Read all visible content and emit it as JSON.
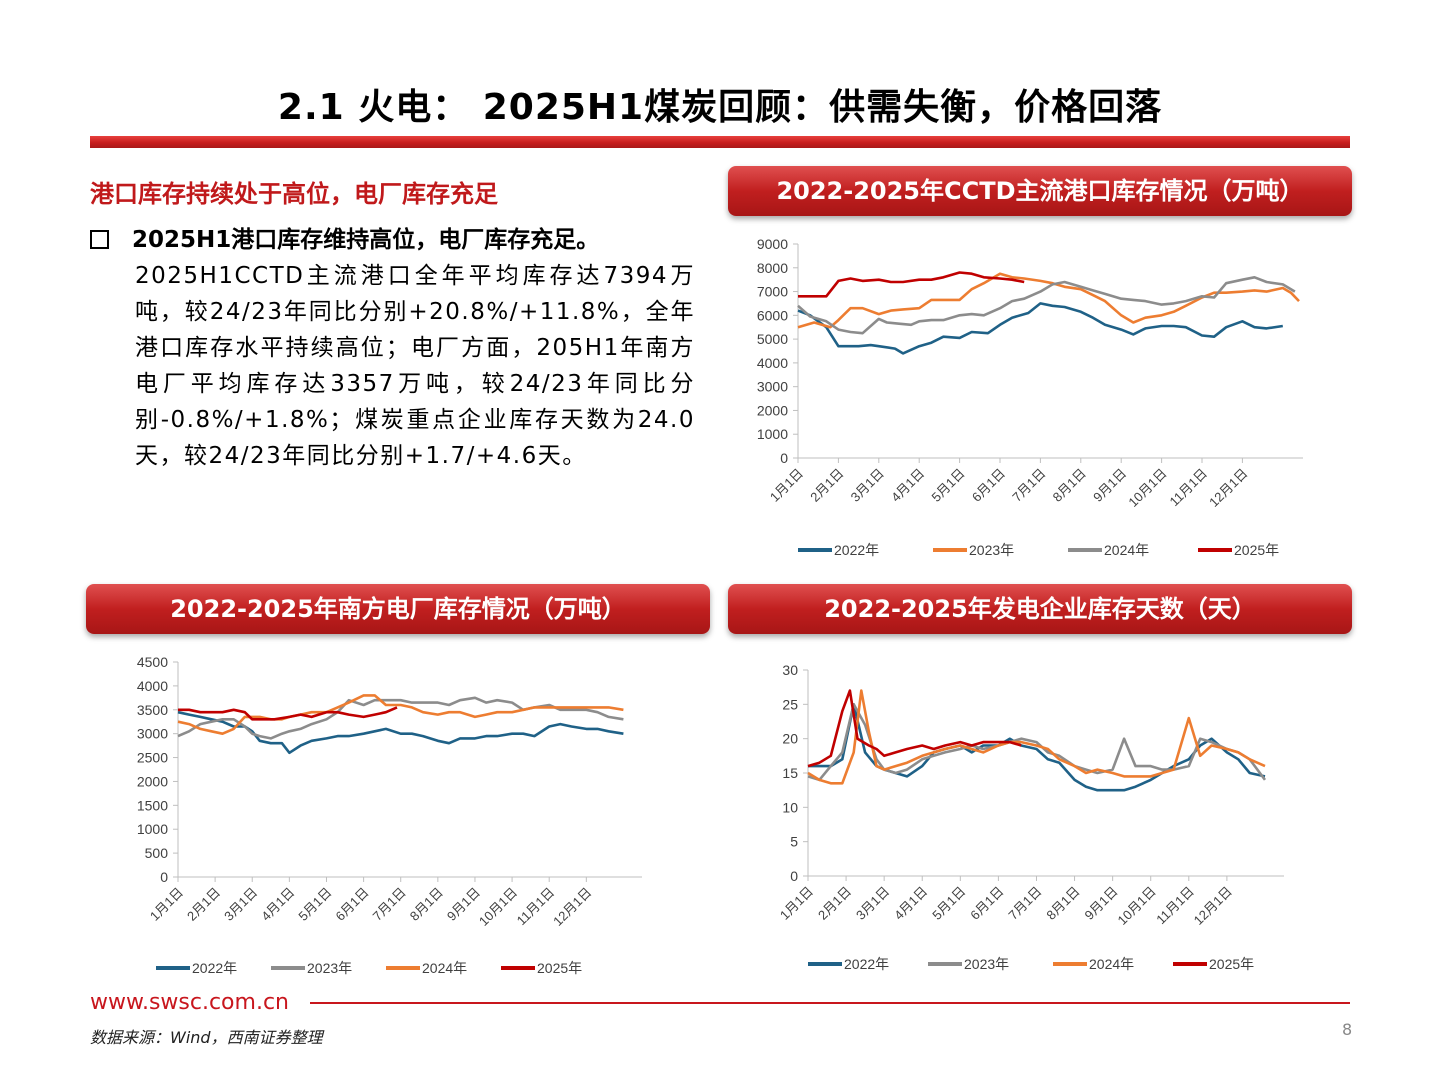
{
  "slide": {
    "title": "2.1 火电： 2025H1煤炭回顾：供需失衡，价格回落",
    "section_heading": "港口库存持续处于高位，电厂库存充足",
    "bullet_lead": "2025H1港口库存维持高位，电厂库存充足。",
    "bullet_body": "2025H1CCTD主流港口全年平均库存达7394万吨，较24/23年同比分别+20.8%/+11.8%，全年港口库存水平持续高位；电厂方面，205H1年南方电厂平均库存达3357万吨，较24/23年同比分别-0.8%/+1.8%；煤炭重点企业库存天数为24.0天，较24/23年同比分别+1.7/+4.6天。",
    "footer_url": "www.swsc.com.cn",
    "source": "数据来源：Wind，西南证券整理",
    "page_number": "8"
  },
  "colors": {
    "brand_red": "#c8161d",
    "y2022": "#1f6187",
    "y2023": "#ed7d31",
    "y2024": "#8c8c8c",
    "y2025": "#c00000"
  },
  "months": [
    "1月1日",
    "2月1日",
    "3月1日",
    "4月1日",
    "5月1日",
    "6月1日",
    "7月1日",
    "8月1日",
    "9月1日",
    "10月1日",
    "11月1日",
    "12月1日"
  ],
  "chart_data": [
    {
      "id": "port",
      "type": "line",
      "title": "2022-2025年CCTD主流港口库存情况（万吨）",
      "ylim": [
        0,
        9000
      ],
      "yticks": [
        "0",
        "1000",
        "2000",
        "3000",
        "4000",
        "5000",
        "6000",
        "7000",
        "8000",
        "9000"
      ],
      "series": [
        {
          "name": "2022年",
          "color": "#1f6187",
          "x": [
            0,
            0.3,
            0.7,
            1,
            1.2,
            1.5,
            1.8,
            2,
            2.4,
            2.6,
            3,
            3.3,
            3.6,
            4,
            4.3,
            4.7,
            5,
            5.3,
            5.7,
            6,
            6.3,
            6.6,
            7,
            7.3,
            7.6,
            8,
            8.3,
            8.6,
            9,
            9.3,
            9.6,
            10,
            10.3,
            10.6,
            11,
            11.3,
            11.6,
            12,
            12.2,
            12.5
          ],
          "y": [
            6200,
            6000,
            5500,
            4700,
            4700,
            4700,
            4750,
            4700,
            4600,
            4400,
            4700,
            4850,
            5100,
            5050,
            5300,
            5250,
            5600,
            5900,
            6100,
            6500,
            6400,
            6350,
            6150,
            5900,
            5600,
            5400,
            5200,
            5450,
            5550,
            5550,
            5500,
            5150,
            5100,
            5500,
            5750,
            5500,
            5450,
            5550,
            null,
            null
          ]
        },
        {
          "name": "2023年",
          "color": "#ed7d31",
          "x": [
            0,
            0.4,
            0.8,
            1,
            1.3,
            1.6,
            2,
            2.3,
            2.6,
            3,
            3.3,
            3.6,
            4,
            4.3,
            4.6,
            5,
            5.3,
            5.6,
            6,
            6.3,
            6.6,
            7,
            7.3,
            7.6,
            8,
            8.3,
            8.6,
            9,
            9.3,
            9.6,
            10,
            10.3,
            10.6,
            11,
            11.3,
            11.6,
            12,
            12.2,
            12.4
          ],
          "y": [
            5500,
            5700,
            5500,
            5800,
            6300,
            6300,
            6050,
            6200,
            6250,
            6300,
            6650,
            6650,
            6650,
            7100,
            7350,
            7750,
            7600,
            7550,
            7450,
            7350,
            7200,
            7100,
            6850,
            6600,
            6000,
            5700,
            5900,
            6000,
            6150,
            6400,
            6750,
            6950,
            6950,
            7000,
            7050,
            7000,
            7150,
            6950,
            6600
          ]
        },
        {
          "name": "2024年",
          "color": "#8c8c8c",
          "x": [
            0,
            0.3,
            0.7,
            1,
            1.3,
            1.6,
            2,
            2.2,
            2.5,
            2.8,
            3,
            3.3,
            3.6,
            4,
            4.3,
            4.6,
            5,
            5.3,
            5.6,
            6,
            6.3,
            6.6,
            7,
            7.3,
            7.6,
            8,
            8.3,
            8.6,
            9,
            9.3,
            9.6,
            10,
            10.3,
            10.6,
            11,
            11.3,
            11.6,
            12,
            12.3
          ],
          "y": [
            6400,
            5950,
            5750,
            5400,
            5300,
            5250,
            5850,
            5700,
            5650,
            5600,
            5750,
            5800,
            5800,
            6000,
            6050,
            6000,
            6300,
            6600,
            6700,
            7000,
            7300,
            7400,
            7200,
            7050,
            6900,
            6700,
            6650,
            6600,
            6450,
            6500,
            6600,
            6800,
            6750,
            7350,
            7500,
            7600,
            7400,
            7300,
            7000
          ]
        },
        {
          "name": "2025年",
          "color": "#c00000",
          "x": [
            0,
            0.3,
            0.7,
            1,
            1.3,
            1.6,
            2,
            2.3,
            2.6,
            3,
            3.3,
            3.6,
            4,
            4.3,
            4.6,
            5,
            5.3,
            5.6
          ],
          "y": [
            6800,
            6800,
            6800,
            7450,
            7550,
            7450,
            7500,
            7400,
            7400,
            7500,
            7500,
            7600,
            7800,
            7750,
            7600,
            7550,
            7500,
            7400
          ]
        }
      ]
    },
    {
      "id": "plant",
      "type": "line",
      "title": "2022-2025年南方电厂库存情况（万吨）",
      "ylim": [
        0,
        4500
      ],
      "yticks": [
        "0",
        "500",
        "1000",
        "1500",
        "2000",
        "2500",
        "3000",
        "3500",
        "4000",
        "4500"
      ],
      "series": [
        {
          "name": "2022年",
          "color": "#1f6187",
          "x": [
            0,
            0.3,
            0.6,
            0.9,
            1.2,
            1.5,
            1.8,
            2,
            2.2,
            2.5,
            2.8,
            3,
            3.3,
            3.6,
            4,
            4.3,
            4.6,
            5,
            5.3,
            5.6,
            6,
            6.3,
            6.6,
            7,
            7.3,
            7.6,
            8,
            8.3,
            8.6,
            9,
            9.3,
            9.6,
            10,
            10.3,
            10.6,
            11,
            11.3,
            11.6,
            12
          ],
          "y": [
            3450,
            3400,
            3350,
            3300,
            3250,
            3150,
            3150,
            3050,
            2850,
            2800,
            2800,
            2600,
            2750,
            2850,
            2900,
            2950,
            2950,
            3000,
            3050,
            3100,
            3000,
            3000,
            2950,
            2850,
            2800,
            2900,
            2900,
            2950,
            2950,
            3000,
            3000,
            2950,
            3150,
            3200,
            3150,
            3100,
            3100,
            3050,
            3000
          ]
        },
        {
          "name": "2023年",
          "color": "#8c8c8c",
          "x": [
            0,
            0.3,
            0.6,
            0.9,
            1.2,
            1.5,
            1.8,
            2,
            2.2,
            2.5,
            2.8,
            3,
            3.3,
            3.6,
            4,
            4.3,
            4.6,
            5,
            5.3,
            5.6,
            6,
            6.3,
            6.6,
            7,
            7.3,
            7.6,
            8,
            8.3,
            8.6,
            9,
            9.3,
            9.6,
            10,
            10.3,
            10.6,
            11,
            11.3,
            11.6,
            12
          ],
          "y": [
            2950,
            3050,
            3200,
            3250,
            3300,
            3300,
            3150,
            3000,
            2950,
            2900,
            3000,
            3050,
            3100,
            3200,
            3300,
            3450,
            3700,
            3600,
            3700,
            3700,
            3700,
            3650,
            3650,
            3650,
            3600,
            3700,
            3750,
            3650,
            3700,
            3650,
            3500,
            3550,
            3600,
            3500,
            3500,
            3500,
            3450,
            3350,
            3300
          ]
        },
        {
          "name": "2024年",
          "color": "#ed7d31",
          "x": [
            0,
            0.3,
            0.6,
            0.9,
            1.2,
            1.5,
            1.8,
            2,
            2.2,
            2.5,
            2.8,
            3,
            3.3,
            3.6,
            4,
            4.3,
            4.6,
            5,
            5.3,
            5.6,
            6,
            6.3,
            6.6,
            7,
            7.3,
            7.6,
            8,
            8.3,
            8.6,
            9,
            9.3,
            9.6,
            10,
            10.3,
            10.6,
            11,
            11.3,
            11.6,
            12
          ],
          "y": [
            3250,
            3200,
            3100,
            3050,
            3000,
            3100,
            3350,
            3350,
            3350,
            3300,
            3300,
            3350,
            3400,
            3450,
            3450,
            3550,
            3650,
            3800,
            3800,
            3600,
            3600,
            3550,
            3450,
            3400,
            3450,
            3450,
            3350,
            3400,
            3450,
            3450,
            3500,
            3550,
            3550,
            3550,
            3550,
            3550,
            3550,
            3550,
            3500
          ]
        },
        {
          "name": "2025年",
          "color": "#c00000",
          "x": [
            0,
            0.3,
            0.6,
            0.9,
            1.2,
            1.5,
            1.8,
            2,
            2.3,
            2.6,
            3,
            3.3,
            3.6,
            4,
            4.3,
            4.6,
            5,
            5.3,
            5.6,
            5.9
          ],
          "y": [
            3500,
            3500,
            3450,
            3450,
            3450,
            3500,
            3450,
            3300,
            3300,
            3300,
            3350,
            3400,
            3350,
            3450,
            3450,
            3400,
            3350,
            3400,
            3450,
            3550
          ]
        }
      ]
    },
    {
      "id": "days",
      "type": "line",
      "title": "2022-2025年发电企业库存天数（天）",
      "ylim": [
        0,
        30
      ],
      "yticks": [
        "0",
        "5",
        "10",
        "15",
        "20",
        "25",
        "30"
      ],
      "series": [
        {
          "name": "2022年",
          "color": "#1f6187",
          "x": [
            0,
            0.3,
            0.6,
            0.9,
            1.2,
            1.5,
            1.8,
            2,
            2.3,
            2.6,
            3,
            3.3,
            3.6,
            4,
            4.3,
            4.6,
            5,
            5.3,
            5.6,
            6,
            6.3,
            6.6,
            7,
            7.3,
            7.6,
            8,
            8.3,
            8.6,
            9,
            9.3,
            9.6,
            10,
            10.3,
            10.6,
            11,
            11.3,
            11.6,
            12
          ],
          "y": [
            16,
            16,
            16,
            17,
            25,
            18,
            16,
            15.5,
            15,
            14.5,
            16,
            18,
            18.5,
            19,
            18,
            19,
            19,
            20,
            19,
            18.5,
            17,
            16.5,
            14,
            13,
            12.5,
            12.5,
            12.5,
            13,
            14,
            15,
            16,
            17,
            19,
            20,
            18,
            17,
            15,
            14.5
          ]
        },
        {
          "name": "2023年",
          "color": "#8c8c8c",
          "x": [
            0,
            0.3,
            0.6,
            0.9,
            1.2,
            1.5,
            1.8,
            2,
            2.3,
            2.6,
            3,
            3.3,
            3.6,
            4,
            4.3,
            4.6,
            5,
            5.3,
            5.6,
            6,
            6.3,
            6.6,
            7,
            7.3,
            7.6,
            8,
            8.3,
            8.6,
            9,
            9.3,
            9.6,
            10,
            10.3,
            10.6,
            11,
            11.3,
            11.6,
            12
          ],
          "y": [
            14.5,
            14,
            16,
            18,
            25,
            22,
            17,
            15.5,
            15,
            15.5,
            17,
            17.5,
            18,
            18.5,
            19,
            18.5,
            19,
            19.5,
            20,
            19.5,
            18,
            17.5,
            16,
            15.5,
            15,
            15.5,
            20,
            16,
            16,
            15.5,
            15.5,
            16,
            20,
            19.5,
            18.5,
            18,
            17,
            14
          ]
        },
        {
          "name": "2024年",
          "color": "#ed7d31",
          "x": [
            0,
            0.3,
            0.6,
            0.9,
            1.2,
            1.4,
            1.6,
            1.8,
            2,
            2.3,
            2.6,
            3,
            3.3,
            3.6,
            4,
            4.3,
            4.6,
            5,
            5.3,
            5.6,
            6,
            6.3,
            6.6,
            7,
            7.3,
            7.6,
            8,
            8.3,
            8.6,
            9,
            9.3,
            9.6,
            10,
            10.3,
            10.6,
            11,
            11.3,
            11.6,
            12
          ],
          "y": [
            15,
            14,
            13.5,
            13.5,
            18,
            27,
            21,
            16,
            15.5,
            16,
            16.5,
            17.5,
            18,
            18.5,
            19,
            18.5,
            18,
            19,
            19.5,
            19.5,
            19,
            18.5,
            17,
            16,
            15,
            15.5,
            15,
            14.5,
            14.5,
            14.5,
            15,
            15.5,
            23,
            17.5,
            19,
            18.5,
            18,
            17,
            16
          ]
        },
        {
          "name": "2025年",
          "color": "#c00000",
          "x": [
            0,
            0.3,
            0.6,
            0.9,
            1.1,
            1.3,
            1.6,
            1.8,
            2,
            2.3,
            2.6,
            3,
            3.3,
            3.6,
            4,
            4.3,
            4.6,
            5,
            5.3,
            5.6
          ],
          "y": [
            16,
            16.5,
            17.5,
            24,
            27,
            20,
            19,
            18.5,
            17.5,
            18,
            18.5,
            19,
            18.5,
            19,
            19.5,
            19,
            19.5,
            19.5,
            19.5,
            19
          ]
        }
      ]
    }
  ]
}
